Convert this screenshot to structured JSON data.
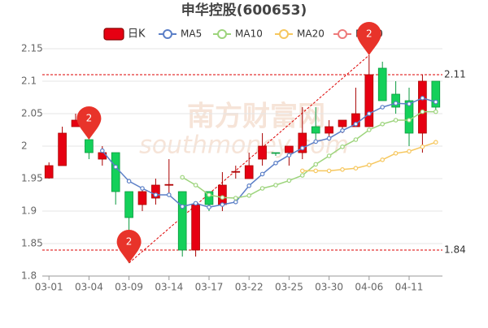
{
  "chart_data": {
    "type": "candlestick",
    "title": "申华控股(600653)",
    "watermark": [
      "南方财富网",
      "southmoney.com"
    ],
    "categories": [
      "03-01",
      null,
      null,
      "03-04",
      null,
      null,
      "03-09",
      null,
      null,
      "03-14",
      null,
      null,
      "03-17",
      null,
      null,
      "03-22",
      null,
      null,
      "03-25",
      null,
      null,
      "03-30",
      null,
      null,
      "04-06",
      null,
      null,
      "04-11",
      null,
      null
    ],
    "candles": {
      "name": "日K",
      "up_color": "#e60012",
      "down_color": "#14d05a",
      "open": [
        1.951,
        1.97,
        2.03,
        2.01,
        1.98,
        1.99,
        1.93,
        1.91,
        1.92,
        1.94,
        1.93,
        1.84,
        1.93,
        1.91,
        1.96,
        1.95,
        1.98,
        1.99,
        1.99,
        1.99,
        2.03,
        2.02,
        2.03,
        2.03,
        2.03,
        2.12,
        2.08,
        2.07,
        2.02,
        2.1
      ],
      "close": [
        1.97,
        2.02,
        2.04,
        1.99,
        1.99,
        1.93,
        1.89,
        1.93,
        1.94,
        1.941,
        1.84,
        1.91,
        1.91,
        1.94,
        1.961,
        1.97,
        2.0,
        1.989,
        2.0,
        2.02,
        2.02,
        2.03,
        2.04,
        2.05,
        2.11,
        2.07,
        2.06,
        2.02,
        2.1,
        2.06
      ],
      "high": [
        1.975,
        2.03,
        2.05,
        2.01,
        2.0,
        1.99,
        1.93,
        1.935,
        1.95,
        1.98,
        1.93,
        1.915,
        1.93,
        1.96,
        1.97,
        1.99,
        2.02,
        1.99,
        2.0,
        2.06,
        2.06,
        2.04,
        2.04,
        2.09,
        2.14,
        2.13,
        2.1,
        2.09,
        2.11,
        2.1
      ],
      "low": [
        1.95,
        1.97,
        2.03,
        1.98,
        1.97,
        1.91,
        1.82,
        1.9,
        1.91,
        1.925,
        1.83,
        1.83,
        1.9,
        1.9,
        1.95,
        1.95,
        1.97,
        1.985,
        1.97,
        1.98,
        2.01,
        2.01,
        2.02,
        2.03,
        2.03,
        2.07,
        2.05,
        2.0,
        1.99,
        2.05
      ]
    },
    "series": [
      {
        "name": "MA5",
        "color": "#5b7fc7",
        "values": [
          null,
          null,
          null,
          null,
          1.993,
          1.968,
          1.946,
          1.935,
          1.925,
          1.925,
          1.907,
          1.912,
          1.906,
          1.91,
          1.914,
          1.939,
          1.957,
          1.974,
          1.986,
          1.997,
          2.007,
          2.012,
          2.024,
          2.034,
          2.05,
          2.06,
          2.066,
          2.065,
          2.074,
          2.068
        ]
      },
      {
        "name": "MA10",
        "color": "#9dd47c",
        "values": [
          null,
          null,
          null,
          null,
          null,
          null,
          null,
          null,
          null,
          null,
          1.952,
          1.94,
          1.925,
          1.921,
          1.92,
          1.924,
          1.935,
          1.94,
          1.947,
          1.955,
          1.972,
          1.985,
          1.999,
          2.01,
          2.025,
          2.034,
          2.04,
          2.04,
          2.053,
          2.053
        ]
      },
      {
        "name": "MA20",
        "color": "#f6c75e",
        "values": [
          null,
          null,
          null,
          null,
          null,
          null,
          null,
          null,
          null,
          null,
          null,
          null,
          null,
          null,
          null,
          null,
          null,
          null,
          null,
          1.962,
          1.962,
          1.962,
          1.964,
          1.966,
          1.971,
          1.979,
          1.989,
          1.992,
          1.999,
          2.006
        ]
      },
      {
        "name": "MA30",
        "color": "#ee7a7a",
        "values": [
          null,
          null,
          null,
          null,
          null,
          null,
          null,
          null,
          null,
          null,
          null,
          null,
          null,
          null,
          null,
          null,
          null,
          null,
          null,
          null,
          null,
          null,
          null,
          null,
          null,
          null,
          null,
          null,
          null,
          null
        ]
      }
    ],
    "ylim": [
      1.8,
      2.15
    ],
    "yticks": [
      1.8,
      1.85,
      1.9,
      1.95,
      2,
      2.05,
      2.1,
      2.15
    ],
    "grid": true,
    "reference_lines": [
      2.11,
      1.84
    ],
    "markers": [
      {
        "label": "2",
        "at": 3,
        "value": 2.01
      },
      {
        "label": "2",
        "at": 6,
        "value": 1.82
      },
      {
        "label": "2",
        "at": 24,
        "value": 2.14
      }
    ]
  }
}
